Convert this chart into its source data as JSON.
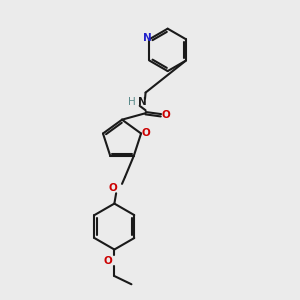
{
  "bg_color": "#ebebeb",
  "bond_color": "#1a1a1a",
  "N_color": "#2222cc",
  "O_color": "#cc0000",
  "NH_H_color": "#5a8a8a",
  "NH_N_color": "#1a1a1a",
  "lw": 1.5,
  "dbg": 0.04,
  "fs": 7.5,
  "xlim": [
    1.5,
    8.5
  ],
  "ylim": [
    0.2,
    10.2
  ]
}
